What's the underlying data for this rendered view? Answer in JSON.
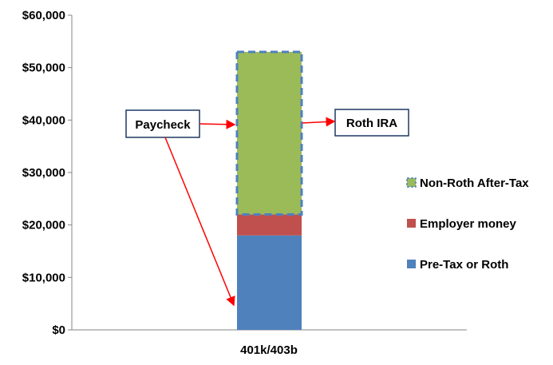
{
  "chart_data": {
    "type": "bar",
    "stacked": true,
    "categories": [
      "401k/403b"
    ],
    "series": [
      {
        "name": "Pre-Tax or Roth",
        "values": [
          18000
        ],
        "color": "#4f81bd"
      },
      {
        "name": "Employer money",
        "values": [
          4000
        ],
        "color": "#c0504d"
      },
      {
        "name": "Non-Roth After-Tax",
        "values": [
          31000
        ],
        "color": "#9bbb59",
        "border": "dashed #4f81bd"
      }
    ],
    "ylim": [
      0,
      60000
    ],
    "yticks": [
      "$0",
      "$10,000",
      "$20,000",
      "$30,000",
      "$40,000",
      "$50,000",
      "$60,000"
    ],
    "grid": false,
    "legend": "right",
    "annotations": [
      {
        "label": "Paycheck",
        "arrow_to": [
          "Non-Roth After-Tax",
          "Pre-Tax or Roth"
        ]
      },
      {
        "label": "Roth IRA",
        "arrow_from": "Non-Roth After-Tax"
      }
    ]
  }
}
